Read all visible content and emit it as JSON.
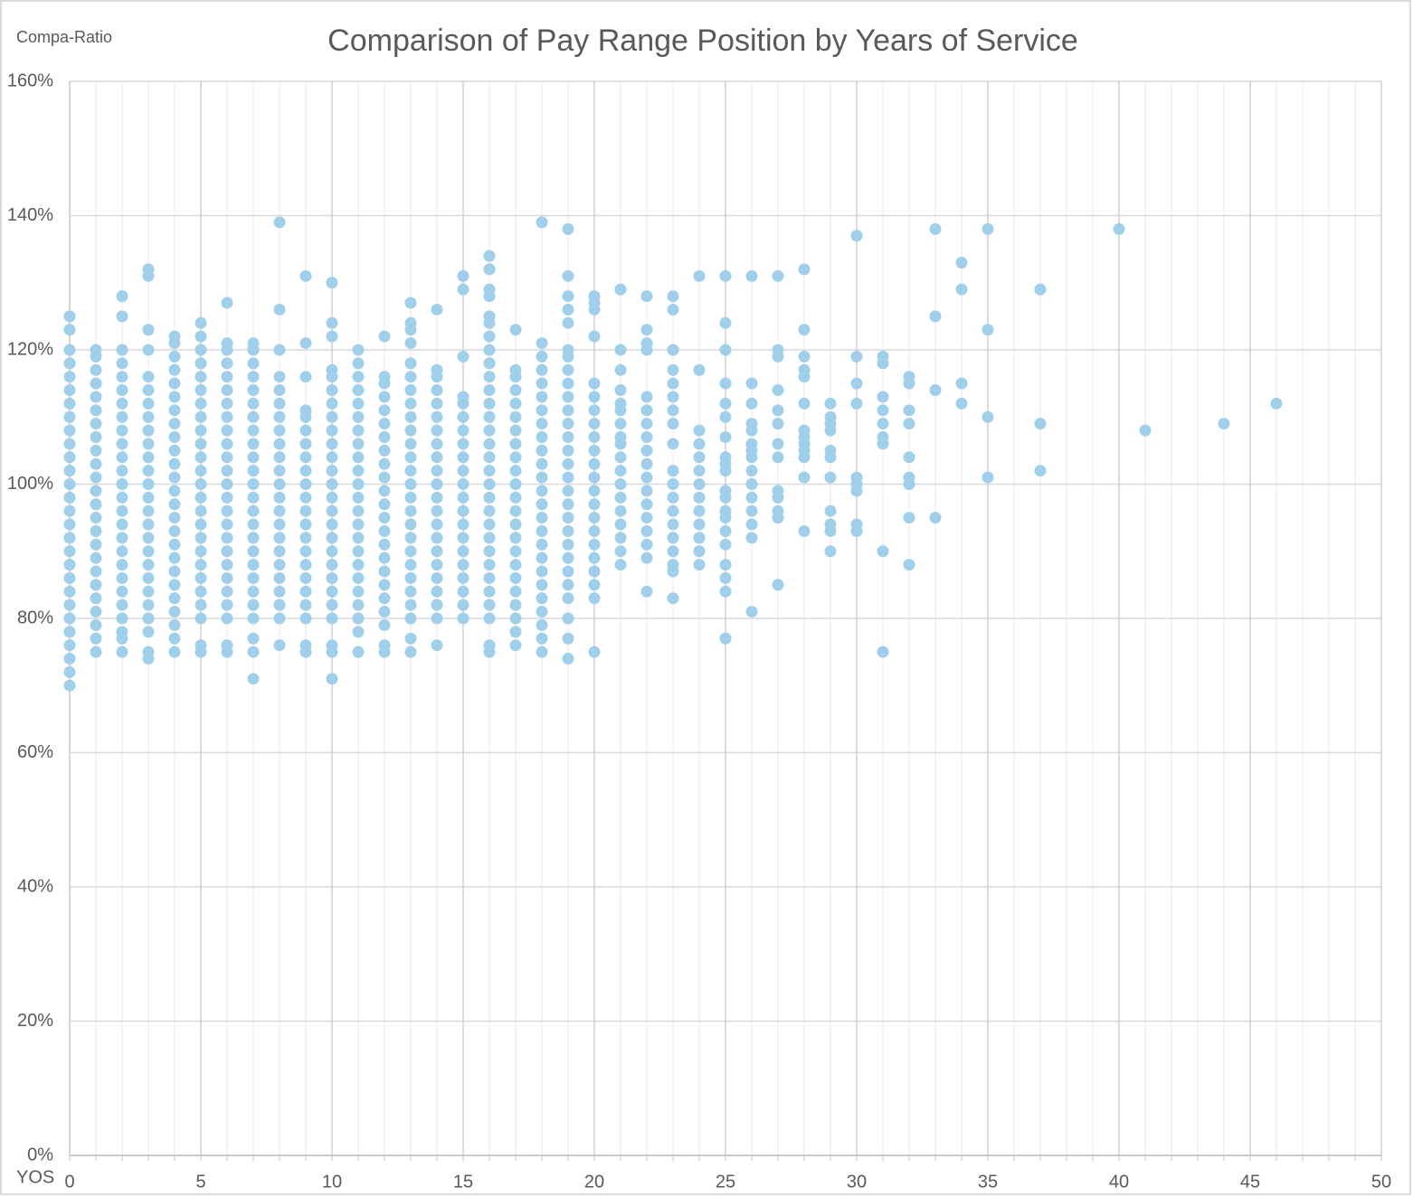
{
  "chart_data": {
    "type": "scatter",
    "title": "Comparison of Pay Range Position by Years of Service",
    "y_label": "Compa-Ratio",
    "x_label": "YOS",
    "color": "#9fcfea",
    "grid": true,
    "xlim": [
      0,
      50
    ],
    "xticks": [
      0,
      5,
      10,
      15,
      20,
      25,
      30,
      35,
      40,
      45,
      50
    ],
    "ylim": [
      0,
      160
    ],
    "yticks": [
      {
        "value": 0,
        "label": "0%"
      },
      {
        "value": 20,
        "label": "20%"
      },
      {
        "value": 40,
        "label": "40%"
      },
      {
        "value": 60,
        "label": "60%"
      },
      {
        "value": 80,
        "label": "80%"
      },
      {
        "value": 100,
        "label": "100%"
      },
      {
        "value": 120,
        "label": "120%"
      },
      {
        "value": 140,
        "label": "140%"
      },
      {
        "value": 160,
        "label": "160%"
      }
    ],
    "x": [
      0,
      0,
      0,
      0,
      0,
      0,
      0,
      0,
      0,
      0,
      0,
      0,
      0,
      0,
      0,
      0,
      0,
      0,
      0,
      0,
      0,
      0,
      0,
      0,
      0,
      0,
      0,
      0,
      1,
      1,
      1,
      1,
      1,
      1,
      1,
      1,
      1,
      1,
      1,
      1,
      1,
      1,
      1,
      1,
      1,
      1,
      1,
      1,
      1,
      1,
      1,
      1,
      2,
      2,
      2,
      2,
      2,
      2,
      2,
      2,
      2,
      2,
      2,
      2,
      2,
      2,
      2,
      2,
      2,
      2,
      2,
      2,
      2,
      2,
      2,
      2,
      2,
      2,
      3,
      3,
      3,
      3,
      3,
      3,
      3,
      3,
      3,
      3,
      3,
      3,
      3,
      3,
      3,
      3,
      3,
      3,
      3,
      3,
      3,
      3,
      3,
      3,
      3,
      3,
      4,
      4,
      4,
      4,
      4,
      4,
      4,
      4,
      4,
      4,
      4,
      4,
      4,
      4,
      4,
      4,
      4,
      4,
      4,
      4,
      4,
      4,
      4,
      4,
      4,
      5,
      5,
      5,
      5,
      5,
      5,
      5,
      5,
      5,
      5,
      5,
      5,
      5,
      5,
      5,
      5,
      5,
      5,
      5,
      5,
      5,
      5,
      5,
      5,
      5,
      6,
      6,
      6,
      6,
      6,
      6,
      6,
      6,
      6,
      6,
      6,
      6,
      6,
      6,
      6,
      6,
      6,
      6,
      6,
      6,
      6,
      6,
      6,
      6,
      6,
      7,
      7,
      7,
      7,
      7,
      7,
      7,
      7,
      7,
      7,
      7,
      7,
      7,
      7,
      7,
      7,
      7,
      7,
      7,
      7,
      7,
      7,
      7,
      7,
      7,
      8,
      8,
      8,
      8,
      8,
      8,
      8,
      8,
      8,
      8,
      8,
      8,
      8,
      8,
      8,
      8,
      8,
      8,
      8,
      8,
      8,
      8,
      8,
      9,
      9,
      9,
      9,
      9,
      9,
      9,
      9,
      9,
      9,
      9,
      9,
      9,
      9,
      9,
      9,
      9,
      9,
      9,
      9,
      9,
      9,
      10,
      10,
      10,
      10,
      10,
      10,
      10,
      10,
      10,
      10,
      10,
      10,
      10,
      10,
      10,
      10,
      10,
      10,
      10,
      10,
      10,
      10,
      10,
      10,
      10,
      10,
      11,
      11,
      11,
      11,
      11,
      11,
      11,
      11,
      11,
      11,
      11,
      11,
      11,
      11,
      11,
      11,
      11,
      11,
      11,
      11,
      11,
      11,
      11,
      12,
      12,
      12,
      12,
      12,
      12,
      12,
      12,
      12,
      12,
      12,
      12,
      12,
      12,
      12,
      12,
      12,
      12,
      12,
      12,
      12,
      12,
      12,
      13,
      13,
      13,
      13,
      13,
      13,
      13,
      13,
      13,
      13,
      13,
      13,
      13,
      13,
      13,
      13,
      13,
      13,
      13,
      13,
      13,
      13,
      13,
      13,
      13,
      13,
      14,
      14,
      14,
      14,
      14,
      14,
      14,
      14,
      14,
      14,
      14,
      14,
      14,
      14,
      14,
      14,
      14,
      14,
      14,
      14,
      14,
      14,
      15,
      15,
      15,
      15,
      15,
      15,
      15,
      15,
      15,
      15,
      15,
      15,
      15,
      15,
      15,
      15,
      15,
      15,
      15,
      15,
      15,
      16,
      16,
      16,
      16,
      16,
      16,
      16,
      16,
      16,
      16,
      16,
      16,
      16,
      16,
      16,
      16,
      16,
      16,
      16,
      16,
      16,
      16,
      16,
      16,
      16,
      16,
      16,
      16,
      16,
      16,
      17,
      17,
      17,
      17,
      17,
      17,
      17,
      17,
      17,
      17,
      17,
      17,
      17,
      17,
      17,
      17,
      17,
      17,
      17,
      17,
      17,
      17,
      17,
      18,
      18,
      18,
      18,
      18,
      18,
      18,
      18,
      18,
      18,
      18,
      18,
      18,
      18,
      18,
      18,
      18,
      18,
      18,
      18,
      18,
      18,
      18,
      18,
      18,
      19,
      19,
      19,
      19,
      19,
      19,
      19,
      19,
      19,
      19,
      19,
      19,
      19,
      19,
      19,
      19,
      19,
      19,
      19,
      19,
      19,
      19,
      19,
      19,
      19,
      19,
      19,
      19,
      20,
      20,
      20,
      20,
      20,
      20,
      20,
      20,
      20,
      20,
      20,
      20,
      20,
      20,
      20,
      20,
      20,
      20,
      20,
      20,
      20,
      20,
      21,
      21,
      21,
      21,
      21,
      21,
      21,
      21,
      21,
      21,
      21,
      21,
      21,
      21,
      21,
      21,
      21,
      21,
      22,
      22,
      22,
      22,
      22,
      22,
      22,
      22,
      22,
      22,
      22,
      22,
      22,
      22,
      22,
      22,
      22,
      22,
      23,
      23,
      23,
      23,
      23,
      23,
      23,
      23,
      23,
      23,
      23,
      23,
      23,
      23,
      23,
      23,
      23,
      23,
      23,
      24,
      24,
      24,
      24,
      24,
      24,
      24,
      24,
      24,
      24,
      24,
      24,
      24,
      25,
      25,
      25,
      25,
      25,
      25,
      25,
      25,
      25,
      25,
      25,
      25,
      25,
      25,
      25,
      25,
      25,
      25,
      25,
      25,
      26,
      26,
      26,
      26,
      26,
      26,
      26,
      26,
      26,
      26,
      26,
      26,
      26,
      26,
      26,
      27,
      27,
      27,
      27,
      27,
      27,
      27,
      27,
      27,
      27,
      27,
      27,
      27,
      28,
      28,
      28,
      28,
      28,
      28,
      28,
      28,
      28,
      28,
      28,
      28,
      28,
      29,
      29,
      29,
      29,
      29,
      29,
      29,
      29,
      29,
      29,
      29,
      30,
      30,
      30,
      30,
      30,
      30,
      30,
      30,
      30,
      31,
      31,
      31,
      31,
      31,
      31,
      31,
      31,
      31,
      32,
      32,
      32,
      32,
      32,
      32,
      32,
      32,
      32,
      33,
      33,
      33,
      33,
      34,
      34,
      34,
      34,
      35,
      35,
      35,
      35,
      37,
      37,
      37,
      40,
      41,
      44,
      46
    ],
    "values": [
      70,
      72,
      74,
      76,
      78,
      80,
      82,
      84,
      86,
      88,
      90,
      92,
      94,
      96,
      98,
      100,
      102,
      104,
      106,
      108,
      110,
      112,
      114,
      116,
      118,
      120,
      123,
      125,
      75,
      77,
      79,
      81,
      83,
      85,
      87,
      89,
      91,
      93,
      95,
      97,
      99,
      101,
      103,
      105,
      107,
      109,
      111,
      113,
      115,
      117,
      119,
      120,
      75,
      77,
      78,
      80,
      82,
      84,
      86,
      88,
      90,
      92,
      94,
      96,
      98,
      100,
      102,
      104,
      106,
      108,
      110,
      112,
      114,
      116,
      118,
      120,
      125,
      128,
      74,
      75,
      78,
      80,
      82,
      84,
      86,
      88,
      90,
      92,
      94,
      96,
      98,
      100,
      102,
      104,
      106,
      108,
      110,
      112,
      114,
      116,
      120,
      123,
      131,
      132,
      75,
      77,
      79,
      81,
      83,
      85,
      87,
      89,
      91,
      93,
      95,
      97,
      99,
      101,
      103,
      105,
      107,
      109,
      111,
      113,
      115,
      117,
      119,
      121,
      122,
      75,
      76,
      80,
      82,
      84,
      86,
      88,
      90,
      92,
      94,
      96,
      98,
      100,
      102,
      104,
      106,
      108,
      110,
      112,
      114,
      116,
      118,
      120,
      122,
      124,
      75,
      76,
      80,
      82,
      84,
      86,
      88,
      90,
      92,
      94,
      96,
      98,
      100,
      102,
      104,
      106,
      108,
      110,
      112,
      114,
      116,
      118,
      120,
      121,
      127,
      71,
      75,
      77,
      80,
      82,
      84,
      86,
      88,
      90,
      92,
      94,
      96,
      98,
      100,
      102,
      104,
      106,
      108,
      110,
      112,
      114,
      116,
      118,
      120,
      121,
      76,
      80,
      82,
      84,
      86,
      88,
      90,
      92,
      94,
      96,
      98,
      100,
      102,
      104,
      106,
      108,
      110,
      112,
      114,
      116,
      120,
      126,
      139,
      75,
      76,
      80,
      82,
      84,
      86,
      88,
      90,
      92,
      94,
      96,
      98,
      100,
      102,
      104,
      106,
      108,
      110,
      111,
      116,
      121,
      131,
      71,
      75,
      76,
      80,
      82,
      84,
      86,
      88,
      90,
      92,
      94,
      96,
      98,
      100,
      102,
      104,
      106,
      108,
      110,
      112,
      114,
      116,
      117,
      122,
      124,
      130,
      75,
      78,
      80,
      82,
      84,
      86,
      88,
      90,
      92,
      94,
      96,
      98,
      100,
      102,
      104,
      106,
      108,
      110,
      112,
      114,
      116,
      118,
      120,
      75,
      76,
      79,
      81,
      83,
      85,
      87,
      89,
      91,
      93,
      95,
      97,
      99,
      101,
      103,
      105,
      107,
      109,
      111,
      113,
      115,
      116,
      122,
      75,
      77,
      80,
      82,
      84,
      86,
      88,
      90,
      92,
      94,
      96,
      98,
      100,
      102,
      104,
      106,
      108,
      110,
      112,
      114,
      116,
      118,
      121,
      123,
      124,
      127,
      76,
      80,
      82,
      84,
      86,
      88,
      90,
      92,
      94,
      96,
      98,
      100,
      102,
      104,
      106,
      108,
      110,
      112,
      114,
      116,
      117,
      126,
      80,
      82,
      84,
      86,
      88,
      90,
      92,
      94,
      96,
      98,
      100,
      102,
      104,
      106,
      108,
      110,
      112,
      113,
      119,
      129,
      131,
      75,
      76,
      80,
      82,
      84,
      86,
      88,
      90,
      92,
      94,
      96,
      98,
      100,
      102,
      104,
      106,
      108,
      110,
      112,
      114,
      116,
      118,
      120,
      122,
      124,
      125,
      128,
      129,
      132,
      134,
      76,
      78,
      80,
      82,
      84,
      86,
      88,
      90,
      92,
      94,
      96,
      98,
      100,
      102,
      104,
      106,
      108,
      110,
      112,
      114,
      116,
      117,
      123,
      75,
      77,
      79,
      81,
      83,
      85,
      87,
      89,
      91,
      93,
      95,
      97,
      99,
      101,
      103,
      105,
      107,
      109,
      111,
      113,
      115,
      117,
      119,
      121,
      139,
      74,
      77,
      80,
      83,
      85,
      87,
      89,
      91,
      93,
      95,
      97,
      99,
      101,
      103,
      105,
      107,
      109,
      111,
      113,
      115,
      117,
      119,
      120,
      124,
      126,
      128,
      131,
      138,
      75,
      83,
      85,
      87,
      89,
      91,
      93,
      95,
      97,
      99,
      101,
      103,
      105,
      107,
      109,
      111,
      113,
      115,
      122,
      126,
      127,
      128,
      88,
      90,
      92,
      94,
      96,
      98,
      100,
      102,
      104,
      106,
      107,
      109,
      111,
      112,
      114,
      117,
      120,
      129,
      84,
      89,
      91,
      93,
      95,
      97,
      99,
      101,
      103,
      105,
      107,
      109,
      111,
      113,
      120,
      121,
      123,
      128,
      83,
      87,
      88,
      90,
      92,
      94,
      96,
      98,
      100,
      102,
      106,
      109,
      111,
      113,
      115,
      117,
      120,
      126,
      128,
      88,
      90,
      92,
      94,
      96,
      98,
      100,
      102,
      104,
      106,
      108,
      117,
      131,
      77,
      84,
      86,
      88,
      91,
      93,
      95,
      96,
      98,
      99,
      102,
      103,
      104,
      107,
      110,
      112,
      115,
      120,
      124,
      131,
      81,
      92,
      94,
      96,
      98,
      100,
      102,
      104,
      105,
      106,
      108,
      109,
      112,
      115,
      131,
      85,
      95,
      96,
      98,
      99,
      104,
      106,
      109,
      111,
      114,
      119,
      120,
      131,
      93,
      101,
      104,
      105,
      106,
      107,
      108,
      112,
      116,
      117,
      119,
      123,
      132,
      90,
      93,
      94,
      96,
      101,
      104,
      105,
      108,
      109,
      110,
      112,
      93,
      94,
      99,
      100,
      101,
      112,
      115,
      119,
      137,
      75,
      90,
      106,
      107,
      109,
      111,
      113,
      118,
      119,
      88,
      95,
      100,
      101,
      104,
      109,
      111,
      115,
      116,
      95,
      114,
      125,
      138,
      112,
      115,
      129,
      133,
      101,
      110,
      123,
      138,
      102,
      109,
      129,
      138,
      108,
      109,
      112
    ]
  }
}
